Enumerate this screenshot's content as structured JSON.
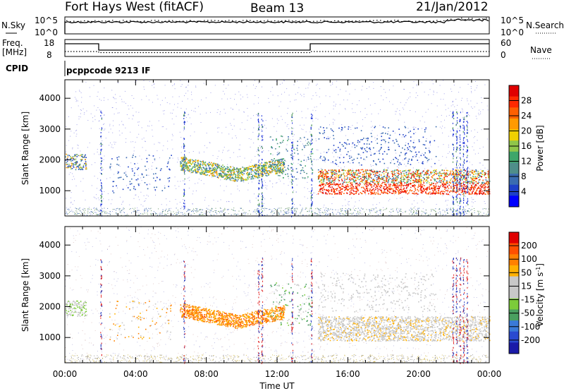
{
  "header": {
    "station": "Fort Hays West (fitACF)",
    "beam": "Beam 13",
    "date": "21/Jan/2012"
  },
  "side_labels": {
    "nsky": "N.Sky",
    "freq": "Freq.",
    "freq_unit": "[MHz]",
    "cpid": "CPID",
    "nsearch": "N.Search",
    "nave": "Nave"
  },
  "cpid_text": "pcppcode 9213 IF",
  "noise_axis": {
    "left_ticks": [
      "10^5",
      "10^0"
    ],
    "right_ticks": [
      "10^5",
      "10^0"
    ]
  },
  "freq_axis": {
    "left_ticks": [
      "18",
      "8"
    ],
    "right_ticks": [
      "60",
      "0"
    ]
  },
  "chart_data": [
    {
      "type": "heatmap",
      "name": "power",
      "xlabel": "",
      "ylabel": "Slant Range [km]",
      "xlim": [
        0,
        24
      ],
      "ylim": [
        180,
        4600
      ],
      "yticks": [
        "4000",
        "3000",
        "2000",
        "1000"
      ],
      "colorbar": {
        "label": "Power [dB]",
        "ticks": [
          "28",
          "24",
          "20",
          "16",
          "12",
          "8",
          "4"
        ],
        "colors": [
          "#0000ff",
          "#1e40c8",
          "#3a6cb0",
          "#4f8e8a",
          "#3ea66a",
          "#8fc64a",
          "#f0d000",
          "#ff9a00",
          "#ff6000",
          "#ff2a00",
          "#e00000"
        ]
      }
    },
    {
      "type": "heatmap",
      "name": "velocity",
      "xlabel": "Time UT",
      "ylabel": "Slant Range [km]",
      "xlim": [
        0,
        24
      ],
      "ylim": [
        180,
        4600
      ],
      "xticks": [
        "00:00",
        "04:00",
        "08:00",
        "12:00",
        "16:00",
        "20:00",
        "00:00"
      ],
      "yticks": [
        "4000",
        "3000",
        "2000",
        "1000"
      ],
      "colorbar": {
        "label": "Velocity [m s-1]",
        "ticks": [
          "200",
          "100",
          "50",
          "15",
          "-15",
          "-50",
          "-100",
          "-200"
        ],
        "colors": [
          "#1a1aa8",
          "#2a4ad0",
          "#3a7ad8",
          "#4aa060",
          "#7ccc3a",
          "#c8c8c8",
          "#c8c8c8",
          "#ffb000",
          "#ff8000",
          "#ff5000",
          "#e00000"
        ]
      }
    }
  ]
}
